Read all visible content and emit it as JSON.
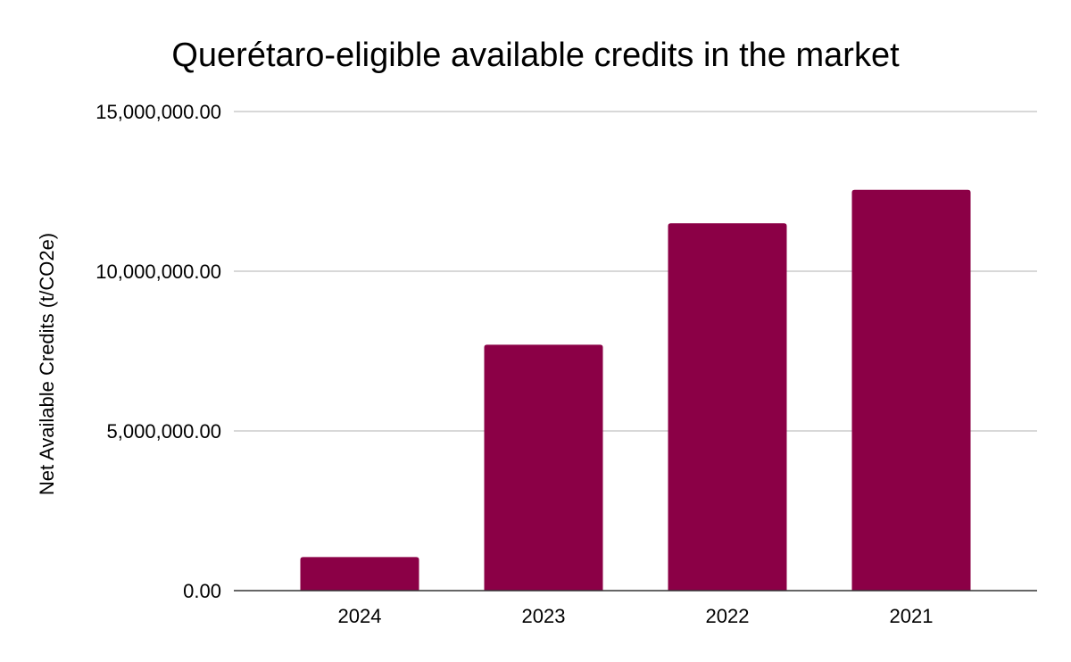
{
  "chart_data": {
    "type": "bar",
    "title": "Querétaro-eligible available credits in the market",
    "xlabel": "",
    "ylabel": "Net Available Credits (t/CO2e)",
    "categories": [
      "2024",
      "2023",
      "2022",
      "2021"
    ],
    "values": [
      1050000,
      7700000,
      11500000,
      12550000
    ],
    "ylim": [
      0,
      15000000
    ],
    "yticks": [
      0,
      5000000,
      10000000,
      15000000
    ],
    "ytick_labels": [
      "0.00",
      "5,000,000.00",
      "10,000,000.00",
      "15,000,000.00"
    ],
    "grid": true,
    "bar_color": "#8b0046"
  }
}
